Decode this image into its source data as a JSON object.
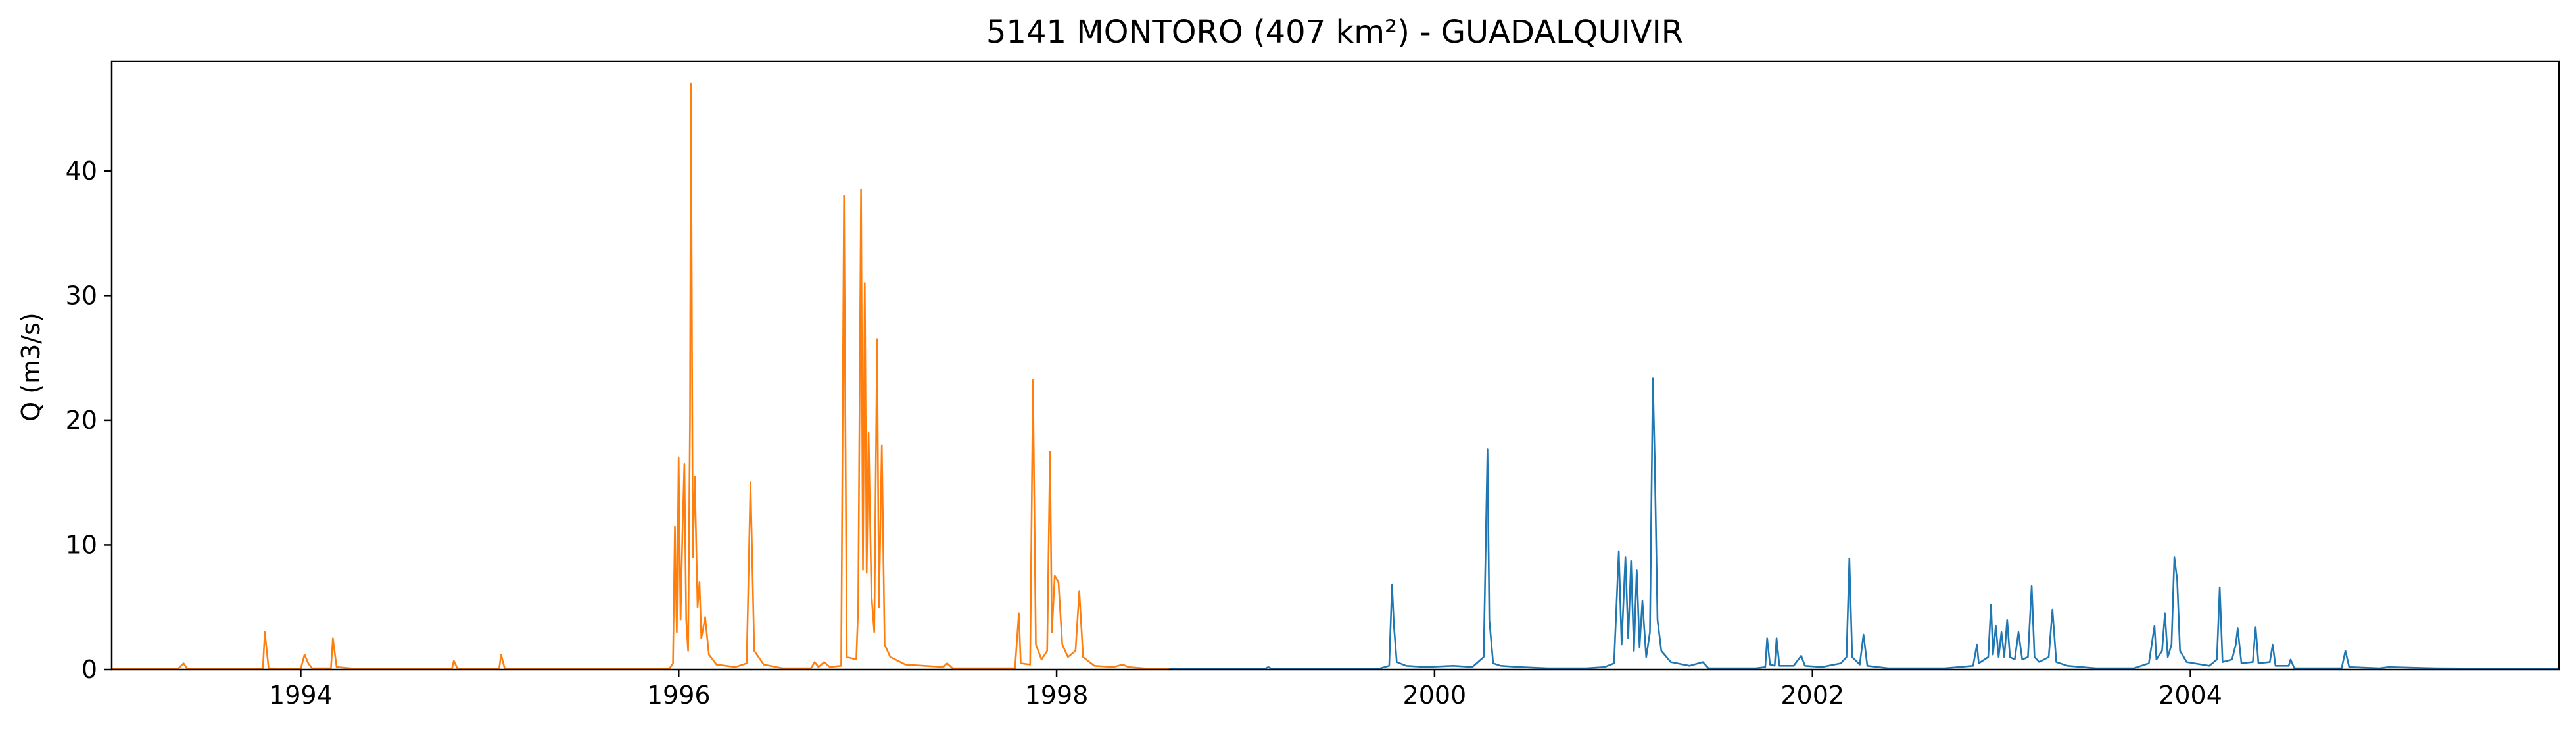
{
  "chart_data": {
    "type": "line",
    "title": "5141 MONTORO (407 km²) - GUADALQUIVIR",
    "xlabel": "",
    "ylabel": "Q (m3/s)",
    "x_unit": "year",
    "xlim": [
      1993.0,
      2005.95
    ],
    "ylim": [
      0,
      48.8
    ],
    "x_ticks": [
      1994,
      1996,
      1998,
      2000,
      2002,
      2004
    ],
    "x_tick_labels": [
      "1994",
      "1996",
      "1998",
      "2000",
      "2002",
      "2004"
    ],
    "y_ticks": [
      0,
      10,
      20,
      30,
      40
    ],
    "y_tick_labels": [
      "0",
      "10",
      "20",
      "30",
      "40"
    ],
    "grid": false,
    "series": [
      {
        "color": "#ff7f0e",
        "points": [
          [
            1993.0,
            0.05
          ],
          [
            1993.35,
            0.05
          ],
          [
            1993.38,
            0.5
          ],
          [
            1993.4,
            0.05
          ],
          [
            1993.8,
            0.05
          ],
          [
            1993.81,
            3.0
          ],
          [
            1993.83,
            0.1
          ],
          [
            1994.0,
            0.05
          ],
          [
            1994.02,
            1.2
          ],
          [
            1994.04,
            0.5
          ],
          [
            1994.06,
            0.1
          ],
          [
            1994.16,
            0.1
          ],
          [
            1994.17,
            2.5
          ],
          [
            1994.19,
            0.2
          ],
          [
            1994.3,
            0.05
          ],
          [
            1994.8,
            0.05
          ],
          [
            1994.81,
            0.7
          ],
          [
            1994.83,
            0.05
          ],
          [
            1995.05,
            0.05
          ],
          [
            1995.06,
            1.2
          ],
          [
            1995.08,
            0.05
          ],
          [
            1995.95,
            0.05
          ],
          [
            1995.97,
            0.5
          ],
          [
            1995.98,
            11.5
          ],
          [
            1995.99,
            3.0
          ],
          [
            1996.0,
            17.0
          ],
          [
            1996.01,
            4.0
          ],
          [
            1996.02,
            11.0
          ],
          [
            1996.03,
            16.5
          ],
          [
            1996.04,
            4.0
          ],
          [
            1996.05,
            1.5
          ],
          [
            1996.06,
            20.3
          ],
          [
            1996.065,
            47.0
          ],
          [
            1996.075,
            9.0
          ],
          [
            1996.085,
            15.5
          ],
          [
            1996.1,
            5.0
          ],
          [
            1996.11,
            7.0
          ],
          [
            1996.12,
            2.5
          ],
          [
            1996.14,
            4.2
          ],
          [
            1996.16,
            1.2
          ],
          [
            1996.2,
            0.4
          ],
          [
            1996.3,
            0.2
          ],
          [
            1996.36,
            0.5
          ],
          [
            1996.38,
            15.0
          ],
          [
            1996.4,
            1.5
          ],
          [
            1996.45,
            0.4
          ],
          [
            1996.55,
            0.1
          ],
          [
            1996.7,
            0.1
          ],
          [
            1996.72,
            0.6
          ],
          [
            1996.74,
            0.2
          ],
          [
            1996.77,
            0.6
          ],
          [
            1996.8,
            0.2
          ],
          [
            1996.86,
            0.3
          ],
          [
            1996.875,
            38.0
          ],
          [
            1996.89,
            1.0
          ],
          [
            1996.94,
            0.8
          ],
          [
            1996.95,
            5.0
          ],
          [
            1996.965,
            38.5
          ],
          [
            1996.975,
            8.0
          ],
          [
            1996.985,
            31.0
          ],
          [
            1996.995,
            7.8
          ],
          [
            1997.005,
            19.0
          ],
          [
            1997.02,
            6.0
          ],
          [
            1997.035,
            3.0
          ],
          [
            1997.05,
            26.5
          ],
          [
            1997.06,
            5.0
          ],
          [
            1997.075,
            18.0
          ],
          [
            1997.09,
            2.0
          ],
          [
            1997.12,
            1.0
          ],
          [
            1997.2,
            0.4
          ],
          [
            1997.4,
            0.2
          ],
          [
            1997.42,
            0.5
          ],
          [
            1997.45,
            0.1
          ],
          [
            1997.78,
            0.1
          ],
          [
            1997.8,
            4.5
          ],
          [
            1997.81,
            0.5
          ],
          [
            1997.86,
            0.4
          ],
          [
            1997.875,
            23.2
          ],
          [
            1997.89,
            2.0
          ],
          [
            1997.92,
            0.8
          ],
          [
            1997.95,
            1.5
          ],
          [
            1997.965,
            17.5
          ],
          [
            1997.975,
            3.0
          ],
          [
            1997.99,
            7.5
          ],
          [
            1998.01,
            7.0
          ],
          [
            1998.03,
            2.0
          ],
          [
            1998.06,
            1.0
          ],
          [
            1998.1,
            1.5
          ],
          [
            1998.12,
            6.3
          ],
          [
            1998.14,
            1.0
          ],
          [
            1998.2,
            0.3
          ],
          [
            1998.3,
            0.2
          ],
          [
            1998.35,
            0.4
          ],
          [
            1998.38,
            0.2
          ],
          [
            1998.5,
            0.05
          ],
          [
            1998.6,
            0.05
          ]
        ]
      },
      {
        "color": "#1f77b4",
        "points": [
          [
            1998.6,
            0.05
          ],
          [
            1999.1,
            0.05
          ],
          [
            1999.12,
            0.2
          ],
          [
            1999.14,
            0.05
          ],
          [
            1999.7,
            0.05
          ],
          [
            1999.76,
            0.3
          ],
          [
            1999.775,
            6.8
          ],
          [
            1999.785,
            3.5
          ],
          [
            1999.8,
            0.6
          ],
          [
            1999.85,
            0.3
          ],
          [
            1999.95,
            0.2
          ],
          [
            2000.1,
            0.3
          ],
          [
            2000.2,
            0.2
          ],
          [
            2000.26,
            1.0
          ],
          [
            2000.28,
            17.7
          ],
          [
            2000.29,
            4.0
          ],
          [
            2000.31,
            0.5
          ],
          [
            2000.35,
            0.3
          ],
          [
            2000.45,
            0.2
          ],
          [
            2000.6,
            0.1
          ],
          [
            2000.8,
            0.1
          ],
          [
            2000.9,
            0.2
          ],
          [
            2000.95,
            0.5
          ],
          [
            2000.975,
            9.5
          ],
          [
            2000.99,
            2.0
          ],
          [
            2001.01,
            9.0
          ],
          [
            2001.025,
            2.5
          ],
          [
            2001.04,
            8.7
          ],
          [
            2001.055,
            1.5
          ],
          [
            2001.07,
            8.0
          ],
          [
            2001.085,
            1.8
          ],
          [
            2001.1,
            5.5
          ],
          [
            2001.12,
            1.0
          ],
          [
            2001.14,
            3.0
          ],
          [
            2001.155,
            23.4
          ],
          [
            2001.165,
            17.0
          ],
          [
            2001.18,
            4.0
          ],
          [
            2001.2,
            1.5
          ],
          [
            2001.25,
            0.6
          ],
          [
            2001.35,
            0.3
          ],
          [
            2001.42,
            0.6
          ],
          [
            2001.45,
            0.1
          ],
          [
            2001.7,
            0.1
          ],
          [
            2001.75,
            0.2
          ],
          [
            2001.76,
            2.5
          ],
          [
            2001.775,
            0.4
          ],
          [
            2001.8,
            0.3
          ],
          [
            2001.81,
            2.5
          ],
          [
            2001.825,
            0.3
          ],
          [
            2001.9,
            0.3
          ],
          [
            2001.94,
            1.1
          ],
          [
            2001.96,
            0.3
          ],
          [
            2002.05,
            0.2
          ],
          [
            2002.15,
            0.5
          ],
          [
            2002.18,
            1.0
          ],
          [
            2002.195,
            8.9
          ],
          [
            2002.21,
            1.0
          ],
          [
            2002.25,
            0.4
          ],
          [
            2002.27,
            2.8
          ],
          [
            2002.29,
            0.3
          ],
          [
            2002.4,
            0.1
          ],
          [
            2002.7,
            0.1
          ],
          [
            2002.85,
            0.3
          ],
          [
            2002.87,
            2.0
          ],
          [
            2002.88,
            0.5
          ],
          [
            2002.93,
            1.0
          ],
          [
            2002.945,
            5.2
          ],
          [
            2002.955,
            1.2
          ],
          [
            2002.97,
            3.5
          ],
          [
            2002.985,
            1.0
          ],
          [
            2003.0,
            3.0
          ],
          [
            2003.015,
            1.0
          ],
          [
            2003.03,
            4.0
          ],
          [
            2003.045,
            1.0
          ],
          [
            2003.07,
            0.8
          ],
          [
            2003.09,
            3.0
          ],
          [
            2003.11,
            0.8
          ],
          [
            2003.14,
            1.0
          ],
          [
            2003.16,
            6.7
          ],
          [
            2003.175,
            1.0
          ],
          [
            2003.2,
            0.6
          ],
          [
            2003.25,
            1.0
          ],
          [
            2003.27,
            4.8
          ],
          [
            2003.29,
            0.6
          ],
          [
            2003.35,
            0.3
          ],
          [
            2003.5,
            0.1
          ],
          [
            2003.7,
            0.1
          ],
          [
            2003.78,
            0.5
          ],
          [
            2003.81,
            3.5
          ],
          [
            2003.82,
            0.8
          ],
          [
            2003.85,
            1.5
          ],
          [
            2003.865,
            4.5
          ],
          [
            2003.88,
            1.0
          ],
          [
            2003.9,
            2.0
          ],
          [
            2003.915,
            9.0
          ],
          [
            2003.93,
            7.2
          ],
          [
            2003.945,
            1.5
          ],
          [
            2003.98,
            0.6
          ],
          [
            2004.1,
            0.3
          ],
          [
            2004.14,
            0.8
          ],
          [
            2004.155,
            6.6
          ],
          [
            2004.17,
            0.6
          ],
          [
            2004.22,
            0.8
          ],
          [
            2004.24,
            2.0
          ],
          [
            2004.25,
            3.3
          ],
          [
            2004.27,
            0.5
          ],
          [
            2004.33,
            0.6
          ],
          [
            2004.345,
            3.4
          ],
          [
            2004.36,
            0.5
          ],
          [
            2004.42,
            0.6
          ],
          [
            2004.435,
            2.0
          ],
          [
            2004.45,
            0.3
          ],
          [
            2004.52,
            0.3
          ],
          [
            2004.53,
            0.8
          ],
          [
            2004.55,
            0.1
          ],
          [
            2004.8,
            0.1
          ],
          [
            2004.82,
            1.5
          ],
          [
            2004.84,
            0.2
          ],
          [
            2005.0,
            0.1
          ],
          [
            2005.05,
            0.2
          ],
          [
            2005.3,
            0.1
          ],
          [
            2005.95,
            0.05
          ]
        ]
      }
    ]
  }
}
